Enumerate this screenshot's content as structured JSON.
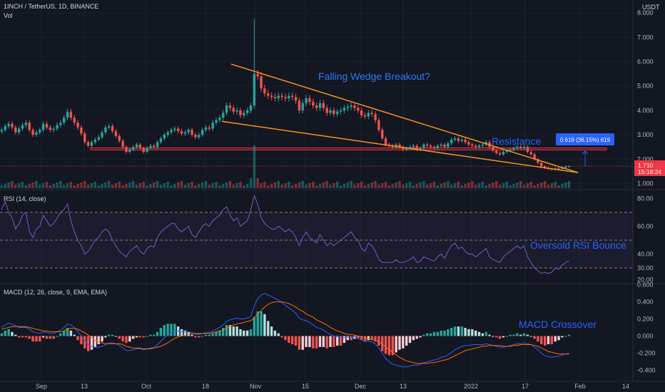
{
  "header": {
    "symbol_line": "1INCH / TetherUS, 1D, BINANCE",
    "vol_label": "Vol",
    "currency": "USDT"
  },
  "annotations": {
    "wedge": "Falling Wedge Breakout?",
    "resistance": "Resistance",
    "rsi_bounce": "Oversold RSI Bounce",
    "macd_cross": "MACD Crossover",
    "measure": "0.619 (36.15%) 619"
  },
  "last_price": {
    "value": "1.710",
    "countdown": "15:18:24"
  },
  "colors": {
    "background": "#131722",
    "up": "#26a69a",
    "down": "#ef5350",
    "wedge": "#f7931a",
    "resistance": "#f23645",
    "annotation": "#2962ff",
    "rsi_line": "#7e57c2",
    "macd_line": "#2962ff",
    "signal_line": "#ff6d00",
    "price_label": "#f23645"
  },
  "chart_data": [
    {
      "type": "candlestick",
      "title": "1INCH / TetherUS, 1D, BINANCE",
      "x_ticks": [
        "Sep",
        "13",
        "Oct",
        "18",
        "Nov",
        "15",
        "Dec",
        "13",
        "2022",
        "17",
        "Feb",
        "14"
      ],
      "y_ticks": [
        "8.000",
        "7.000",
        "6.000",
        "5.000",
        "4.000",
        "3.000",
        "2.000",
        "1.000"
      ],
      "ylim": [
        0.8,
        8.3
      ],
      "close_series": [
        3.2,
        3.35,
        3.45,
        3.3,
        3.1,
        3.25,
        3.4,
        3.5,
        3.2,
        3.0,
        3.1,
        3.2,
        3.45,
        3.3,
        3.2,
        3.25,
        3.4,
        3.5,
        3.7,
        3.95,
        3.7,
        3.5,
        3.3,
        3.05,
        2.7,
        2.55,
        2.7,
        2.8,
        2.9,
        3.1,
        3.3,
        3.35,
        3.15,
        2.95,
        2.75,
        2.5,
        2.3,
        2.4,
        2.5,
        2.6,
        2.45,
        2.3,
        2.45,
        2.55,
        2.5,
        2.7,
        2.85,
        3.0,
        3.1,
        3.2,
        3.25,
        3.15,
        3.05,
        3.1,
        3.2,
        3.0,
        2.9,
        3.0,
        3.2,
        3.3,
        3.25,
        3.5,
        3.6,
        3.7,
        3.9,
        4.2,
        4.1,
        3.95,
        4.0,
        3.8,
        3.9,
        4.0,
        4.2,
        5.5,
        5.4,
        4.9,
        4.7,
        4.6,
        4.55,
        4.5,
        4.6,
        4.55,
        4.5,
        4.6,
        4.55,
        4.4,
        4.0,
        4.3,
        4.5,
        4.35,
        4.2,
        4.1,
        4.3,
        4.1,
        3.9,
        4.0,
        3.85,
        3.95,
        4.0,
        4.1,
        4.15,
        4.2,
        4.1,
        4.0,
        3.8,
        3.75,
        3.9,
        3.85,
        3.6,
        3.2,
        2.85,
        2.6,
        2.55,
        2.5,
        2.6,
        2.5,
        2.4,
        2.45,
        2.5,
        2.55,
        2.4,
        2.45,
        2.6,
        2.55,
        2.5,
        2.45,
        2.55,
        2.6,
        2.5,
        2.65,
        2.8,
        2.85,
        2.75,
        2.8,
        2.7,
        2.6,
        2.55,
        2.5,
        2.55,
        2.6,
        2.7,
        2.5,
        2.35,
        2.25,
        2.2,
        2.3,
        2.35,
        2.4,
        2.45,
        2.5,
        2.45,
        2.5,
        2.3,
        2.2,
        2.0,
        1.85,
        1.7,
        1.65,
        1.6,
        1.58,
        1.62,
        1.6,
        1.65,
        1.7,
        1.71
      ],
      "wedge_upper": {
        "from": {
          "date": "Oct 24",
          "price": 5.9
        },
        "to": {
          "date": "Jan 28",
          "price": 1.45
        }
      },
      "wedge_lower": {
        "from": {
          "date": "Oct 22",
          "price": 3.55
        },
        "to": {
          "date": "Jan 28",
          "price": 1.45
        }
      },
      "resistance": [
        2.38,
        2.46
      ],
      "measure": {
        "from": 1.71,
        "to": 2.33,
        "label": "0.619 (36.15%) 619"
      },
      "last_price": 1.71
    },
    {
      "type": "volume",
      "title": "Vol",
      "spike_index": 73
    },
    {
      "type": "line",
      "title": "RSI (14, close)",
      "y_ticks": [
        "80.00",
        "60.00",
        "40.00",
        "30.00",
        "20.00"
      ],
      "ylim": [
        20,
        84
      ],
      "bands": [
        30,
        70
      ],
      "mid": 50,
      "series": [
        {
          "values": [
            72,
            78,
            70,
            66,
            58,
            62,
            68,
            70,
            56,
            52,
            58,
            60,
            68,
            64,
            60,
            62,
            66,
            70,
            72,
            76,
            64,
            56,
            50,
            46,
            40,
            42,
            46,
            50,
            52,
            56,
            58,
            56,
            50,
            46,
            42,
            40,
            38,
            42,
            44,
            46,
            42,
            40,
            44,
            46,
            45,
            52,
            56,
            58,
            60,
            62,
            62,
            58,
            56,
            58,
            60,
            54,
            52,
            56,
            60,
            62,
            60,
            64,
            66,
            68,
            72,
            74,
            68,
            64,
            66,
            60,
            62,
            64,
            72,
            82,
            76,
            66,
            62,
            60,
            58,
            58,
            60,
            58,
            56,
            58,
            56,
            52,
            46,
            52,
            56,
            52,
            50,
            48,
            54,
            50,
            46,
            48,
            46,
            48,
            50,
            52,
            54,
            56,
            52,
            50,
            44,
            42,
            48,
            46,
            42,
            36,
            34,
            34,
            34,
            34,
            36,
            34,
            34,
            35,
            36,
            38,
            34,
            35,
            38,
            37,
            36,
            35,
            38,
            40,
            37,
            42,
            46,
            48,
            44,
            45,
            42,
            40,
            40,
            38,
            40,
            42,
            44,
            38,
            36,
            35,
            34,
            38,
            40,
            42,
            44,
            46,
            44,
            46,
            38,
            34,
            30,
            28,
            26,
            27,
            26,
            27,
            30,
            29,
            32,
            34,
            35
          ]
        }
      ]
    },
    {
      "type": "line",
      "title": "MACD (12, 26, close, 9, EMA, EMA)",
      "y_ticks": [
        "0.600",
        "0.400",
        "0.200",
        "0.000",
        "-0.200",
        "-0.400"
      ],
      "ylim": [
        -0.45,
        0.62
      ],
      "series": [
        {
          "name": "MACD",
          "values": [
            0.1,
            0.13,
            0.15,
            0.14,
            0.12,
            0.1,
            0.1,
            0.1,
            0.08,
            0.05,
            0.04,
            0.03,
            0.05,
            0.04,
            0.03,
            0.03,
            0.05,
            0.07,
            0.1,
            0.14,
            0.13,
            0.1,
            0.05,
            0.0,
            -0.05,
            -0.1,
            -0.12,
            -0.13,
            -0.13,
            -0.12,
            -0.1,
            -0.08,
            -0.08,
            -0.09,
            -0.11,
            -0.14,
            -0.17,
            -0.17,
            -0.16,
            -0.15,
            -0.15,
            -0.16,
            -0.15,
            -0.14,
            -0.13,
            -0.1,
            -0.06,
            -0.02,
            0.01,
            0.04,
            0.06,
            0.06,
            0.05,
            0.05,
            0.05,
            0.04,
            0.02,
            0.02,
            0.03,
            0.04,
            0.04,
            0.06,
            0.08,
            0.1,
            0.13,
            0.17,
            0.19,
            0.2,
            0.21,
            0.2,
            0.2,
            0.21,
            0.23,
            0.35,
            0.44,
            0.48,
            0.5,
            0.48,
            0.46,
            0.44,
            0.42,
            0.39,
            0.36,
            0.33,
            0.3,
            0.27,
            0.21,
            0.19,
            0.18,
            0.16,
            0.13,
            0.1,
            0.09,
            0.07,
            0.04,
            0.02,
            0.0,
            -0.01,
            -0.02,
            -0.02,
            -0.01,
            -0.01,
            -0.01,
            -0.02,
            -0.04,
            -0.06,
            -0.06,
            -0.07,
            -0.09,
            -0.14,
            -0.2,
            -0.26,
            -0.3,
            -0.33,
            -0.34,
            -0.35,
            -0.36,
            -0.36,
            -0.35,
            -0.34,
            -0.34,
            -0.33,
            -0.31,
            -0.3,
            -0.29,
            -0.28,
            -0.27,
            -0.25,
            -0.24,
            -0.22,
            -0.19,
            -0.16,
            -0.14,
            -0.12,
            -0.11,
            -0.11,
            -0.1,
            -0.1,
            -0.1,
            -0.1,
            -0.09,
            -0.1,
            -0.11,
            -0.12,
            -0.13,
            -0.13,
            -0.12,
            -0.11,
            -0.1,
            -0.09,
            -0.09,
            -0.08,
            -0.09,
            -0.1,
            -0.13,
            -0.16,
            -0.2,
            -0.23,
            -0.24,
            -0.25,
            -0.24,
            -0.24,
            -0.22,
            -0.21,
            -0.2
          ]
        },
        {
          "name": "Signal",
          "values": [
            0.08,
            0.09,
            0.1,
            0.11,
            0.11,
            0.11,
            0.11,
            0.11,
            0.1,
            0.09,
            0.08,
            0.07,
            0.06,
            0.06,
            0.05,
            0.05,
            0.05,
            0.05,
            0.06,
            0.08,
            0.09,
            0.09,
            0.08,
            0.06,
            0.04,
            0.01,
            -0.02,
            -0.05,
            -0.07,
            -0.08,
            -0.09,
            -0.09,
            -0.09,
            -0.09,
            -0.09,
            -0.1,
            -0.12,
            -0.13,
            -0.14,
            -0.14,
            -0.14,
            -0.15,
            -0.15,
            -0.15,
            -0.14,
            -0.13,
            -0.12,
            -0.1,
            -0.08,
            -0.05,
            -0.03,
            -0.01,
            0.0,
            0.01,
            0.02,
            0.03,
            0.03,
            0.03,
            0.03,
            0.03,
            0.03,
            0.04,
            0.05,
            0.06,
            0.07,
            0.09,
            0.11,
            0.13,
            0.14,
            0.15,
            0.16,
            0.17,
            0.18,
            0.21,
            0.26,
            0.3,
            0.34,
            0.37,
            0.39,
            0.4,
            0.4,
            0.4,
            0.39,
            0.38,
            0.36,
            0.34,
            0.31,
            0.29,
            0.26,
            0.24,
            0.22,
            0.19,
            0.17,
            0.15,
            0.13,
            0.1,
            0.08,
            0.06,
            0.05,
            0.03,
            0.02,
            0.02,
            0.01,
            0.0,
            -0.01,
            -0.02,
            -0.03,
            -0.04,
            -0.05,
            -0.07,
            -0.09,
            -0.13,
            -0.16,
            -0.19,
            -0.22,
            -0.25,
            -0.27,
            -0.29,
            -0.3,
            -0.31,
            -0.32,
            -0.32,
            -0.32,
            -0.32,
            -0.31,
            -0.31,
            -0.3,
            -0.29,
            -0.28,
            -0.27,
            -0.25,
            -0.23,
            -0.21,
            -0.19,
            -0.17,
            -0.16,
            -0.15,
            -0.14,
            -0.13,
            -0.12,
            -0.12,
            -0.11,
            -0.11,
            -0.11,
            -0.11,
            -0.12,
            -0.12,
            -0.12,
            -0.11,
            -0.11,
            -0.1,
            -0.1,
            -0.1,
            -0.1,
            -0.11,
            -0.12,
            -0.14,
            -0.16,
            -0.18,
            -0.19,
            -0.2,
            -0.21,
            -0.21,
            -0.21,
            -0.21
          ]
        }
      ]
    }
  ]
}
